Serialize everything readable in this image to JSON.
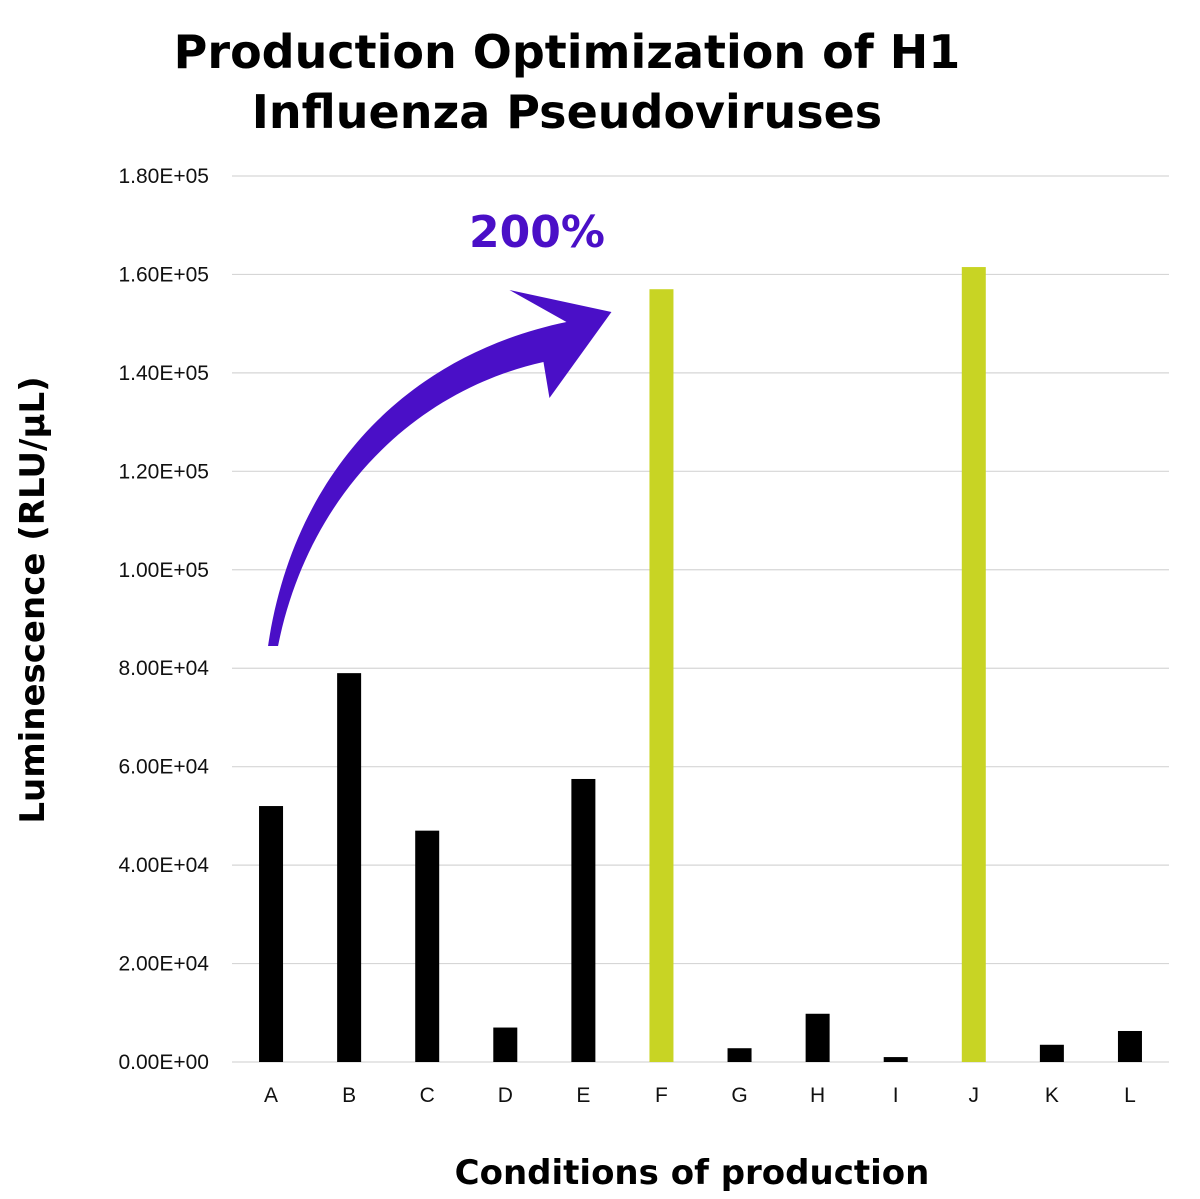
{
  "chart_data": {
    "type": "bar",
    "title_lines": [
      "Production Optimization of H1",
      "Influenza Pseudoviruses"
    ],
    "xlabel": "Conditions of production",
    "ylabel": "Luminescence (RLU/µL)",
    "categories": [
      "A",
      "B",
      "C",
      "D",
      "E",
      "F",
      "G",
      "H",
      "I",
      "J",
      "K",
      "L"
    ],
    "values": [
      52000,
      79000,
      47000,
      7000,
      57500,
      157000,
      2800,
      9800,
      1000,
      161500,
      3500,
      6300
    ],
    "bar_colors": [
      "#000000",
      "#000000",
      "#000000",
      "#000000",
      "#000000",
      "#c8d424",
      "#000000",
      "#000000",
      "#000000",
      "#c8d424",
      "#000000",
      "#000000"
    ],
    "ylim": [
      0,
      180000
    ],
    "y_ticks": [
      0,
      20000,
      40000,
      60000,
      80000,
      100000,
      120000,
      140000,
      160000,
      180000
    ],
    "y_tick_labels": [
      "0.00E+00",
      "2.00E+04",
      "4.00E+04",
      "6.00E+04",
      "8.00E+04",
      "1.00E+05",
      "1.20E+05",
      "1.40E+05",
      "1.60E+05",
      "1.80E+05"
    ],
    "grid": true,
    "legend": "none",
    "annotation": {
      "text": "200%",
      "color": "#4a0fc7",
      "from_category": "A",
      "to_category": "F"
    }
  }
}
